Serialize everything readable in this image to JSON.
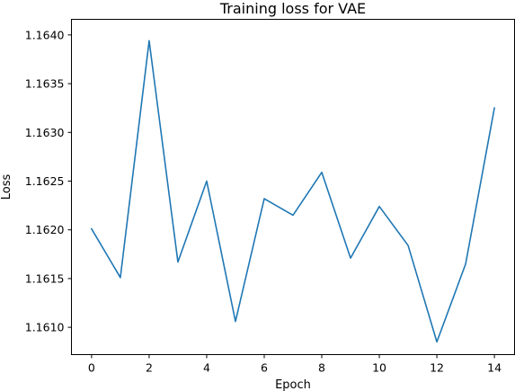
{
  "chart_data": {
    "type": "line",
    "title": "Training loss for VAE",
    "xlabel": "Epoch",
    "ylabel": "Loss",
    "xlim": [
      -0.7,
      14.7
    ],
    "ylim": [
      1.16072,
      1.16416
    ],
    "xticks": [
      0,
      2,
      4,
      6,
      8,
      10,
      12,
      14
    ],
    "yticks": [
      1.161,
      1.1615,
      1.162,
      1.1625,
      1.163,
      1.1635,
      1.164
    ],
    "ytick_labels": [
      "1.1610",
      "1.1615",
      "1.1620",
      "1.1625",
      "1.1630",
      "1.1635",
      "1.1640"
    ],
    "grid": false,
    "color": "#1f77b4",
    "series": [
      {
        "x": [
          0,
          1,
          2,
          3,
          4,
          5,
          6,
          7,
          8,
          9,
          10,
          11,
          12,
          13,
          14
        ],
        "values": [
          1.16201,
          1.16151,
          1.16394,
          1.16167,
          1.1625,
          1.16106,
          1.16232,
          1.16215,
          1.16259,
          1.16171,
          1.16224,
          1.16184,
          1.16085,
          1.16165,
          1.16325
        ]
      }
    ]
  }
}
